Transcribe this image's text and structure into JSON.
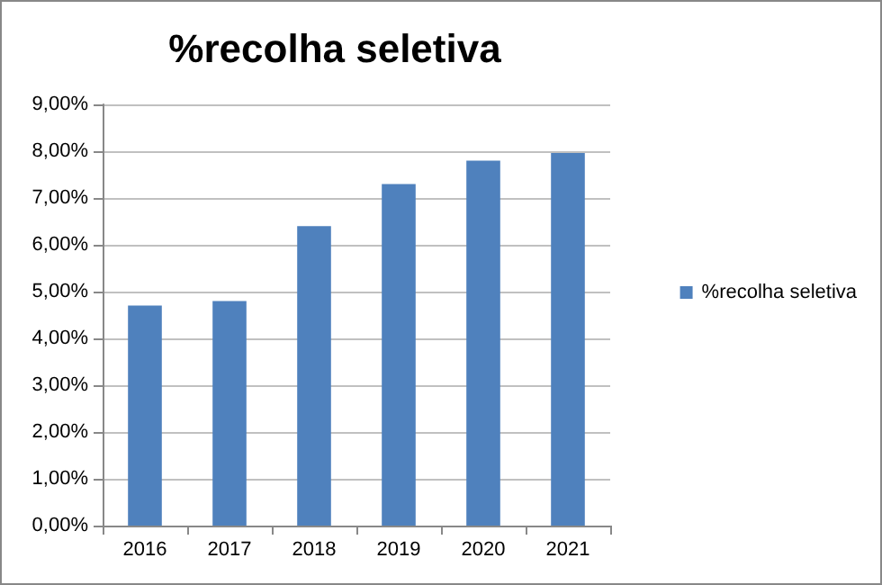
{
  "chart_data": {
    "type": "bar",
    "title": "%recolha seletiva",
    "categories": [
      "2016",
      "2017",
      "2018",
      "2019",
      "2020",
      "2021"
    ],
    "series": [
      {
        "name": "%recolha seletiva",
        "color": "#4f81bd",
        "values": [
          4.7,
          4.8,
          6.4,
          7.3,
          7.8,
          7.96
        ]
      }
    ],
    "ylim": [
      0,
      9
    ],
    "yticks": [
      {
        "value": 0,
        "label": "0,00%"
      },
      {
        "value": 1,
        "label": "1,00%"
      },
      {
        "value": 2,
        "label": "2,00%"
      },
      {
        "value": 3,
        "label": "3,00%"
      },
      {
        "value": 4,
        "label": "4,00%"
      },
      {
        "value": 5,
        "label": "5,00%"
      },
      {
        "value": 6,
        "label": "6,00%"
      },
      {
        "value": 7,
        "label": "7,00%"
      },
      {
        "value": 8,
        "label": "8,00%"
      },
      {
        "value": 9,
        "label": "9,00%"
      }
    ],
    "grid": "y",
    "legend": "right"
  }
}
